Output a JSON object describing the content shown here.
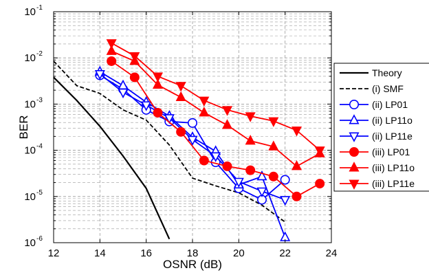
{
  "chart_data": {
    "type": "line",
    "title": "",
    "xlabel": "OSNR (dB)",
    "ylabel": "BER",
    "xlim": [
      12,
      24
    ],
    "ylim": [
      1e-06,
      0.1
    ],
    "yscale": "log",
    "grid": true,
    "legend_position": "right",
    "x_ticks": [
      "12",
      "14",
      "16",
      "18",
      "20",
      "22",
      "24"
    ],
    "y_ticks": [
      {
        "base": "10",
        "exp": "-6"
      },
      {
        "base": "10",
        "exp": "-5"
      },
      {
        "base": "10",
        "exp": "-4"
      },
      {
        "base": "10",
        "exp": "-3"
      },
      {
        "base": "10",
        "exp": "-2"
      },
      {
        "base": "10",
        "exp": "-1"
      }
    ],
    "series": [
      {
        "name": "Theory",
        "color": "#000000",
        "dash": "solid",
        "marker": "none",
        "points": [
          [
            12,
            0.0038
          ],
          [
            13,
            0.0012
          ],
          [
            14,
            0.00033
          ],
          [
            15,
            7.5e-05
          ],
          [
            16,
            1.5e-05
          ],
          [
            17,
            1.2e-06
          ]
        ]
      },
      {
        "name": "(i) SMF",
        "color": "#000000",
        "dash": "dashed",
        "marker": "none",
        "points": [
          [
            12,
            0.0085
          ],
          [
            13,
            0.0025
          ],
          [
            14,
            0.0017
          ],
          [
            15,
            0.00075
          ],
          [
            16,
            0.00045
          ],
          [
            17,
            0.00013
          ],
          [
            18,
            2.5e-05
          ],
          [
            19,
            1.7e-05
          ],
          [
            20,
            1.2e-05
          ],
          [
            21,
            6.5e-06
          ],
          [
            22,
            2.8e-06
          ]
        ]
      },
      {
        "name": "(ii) LP01",
        "color": "#0000ff",
        "dash": "solid",
        "marker": "circle-open",
        "points": [
          [
            14,
            0.0042
          ],
          [
            15,
            0.0021
          ],
          [
            16,
            0.00075
          ],
          [
            17,
            0.00042
          ],
          [
            18,
            0.00039
          ],
          [
            19,
            5.5e-05
          ],
          [
            20,
            1.5e-05
          ],
          [
            21,
            8.5e-06
          ],
          [
            22,
            2.3e-05
          ]
        ]
      },
      {
        "name": "(ii) LP11o",
        "color": "#0000ff",
        "dash": "solid",
        "marker": "triangle-up-open",
        "points": [
          [
            14,
            0.005
          ],
          [
            15,
            0.0025
          ],
          [
            16,
            0.0011
          ],
          [
            17,
            0.00055
          ],
          [
            18,
            0.00019
          ],
          [
            19,
            9.5e-05
          ],
          [
            20,
            1.8e-05
          ],
          [
            21,
            2.7e-05
          ],
          [
            22,
            1.3e-06
          ]
        ]
      },
      {
        "name": "(ii) LP11e",
        "color": "#0000ff",
        "dash": "solid",
        "marker": "triangle-down-open",
        "points": [
          [
            14,
            0.0045
          ],
          [
            15,
            0.0018
          ],
          [
            16,
            0.00095
          ],
          [
            17,
            0.0005
          ],
          [
            18,
            0.00017
          ],
          [
            19,
            7.5e-05
          ],
          [
            20,
            2.1e-05
          ],
          [
            21,
            1.3e-05
          ],
          [
            22,
            8.5e-06
          ]
        ]
      },
      {
        "name": "(iii) LP01",
        "color": "#ff0000",
        "dash": "solid",
        "marker": "circle-filled",
        "points": [
          [
            14.5,
            0.0085
          ],
          [
            15.5,
            0.0038
          ],
          [
            16.5,
            0.00065
          ],
          [
            17.5,
            0.00025
          ],
          [
            18.5,
            6e-05
          ],
          [
            19.5,
            4.5e-05
          ],
          [
            20.5,
            3.7e-05
          ],
          [
            21.5,
            2.7e-05
          ],
          [
            22.5,
            1e-05
          ],
          [
            23.5,
            1.9e-05
          ]
        ]
      },
      {
        "name": "(iii) LP11o",
        "color": "#ff0000",
        "dash": "solid",
        "marker": "triangle-up-filled",
        "points": [
          [
            14.5,
            0.014
          ],
          [
            15.5,
            0.0085
          ],
          [
            16.5,
            0.0026
          ],
          [
            17.5,
            0.0014
          ],
          [
            18.5,
            0.00065
          ],
          [
            19.5,
            0.00035
          ],
          [
            20.5,
            0.00016
          ],
          [
            21.5,
            0.00012
          ],
          [
            22.5,
            4.5e-05
          ],
          [
            23.5,
            8.5e-05
          ]
        ]
      },
      {
        "name": "(iii) LP11e",
        "color": "#ff0000",
        "dash": "solid",
        "marker": "triangle-down-filled",
        "points": [
          [
            14.5,
            0.021
          ],
          [
            15.5,
            0.011
          ],
          [
            16.5,
            0.004
          ],
          [
            17.5,
            0.0025
          ],
          [
            18.5,
            0.0012
          ],
          [
            19.5,
            0.00075
          ],
          [
            20.5,
            0.00055
          ],
          [
            21.5,
            0.00043
          ],
          [
            22.5,
            0.00027
          ],
          [
            23.5,
            0.0001
          ]
        ]
      }
    ]
  }
}
